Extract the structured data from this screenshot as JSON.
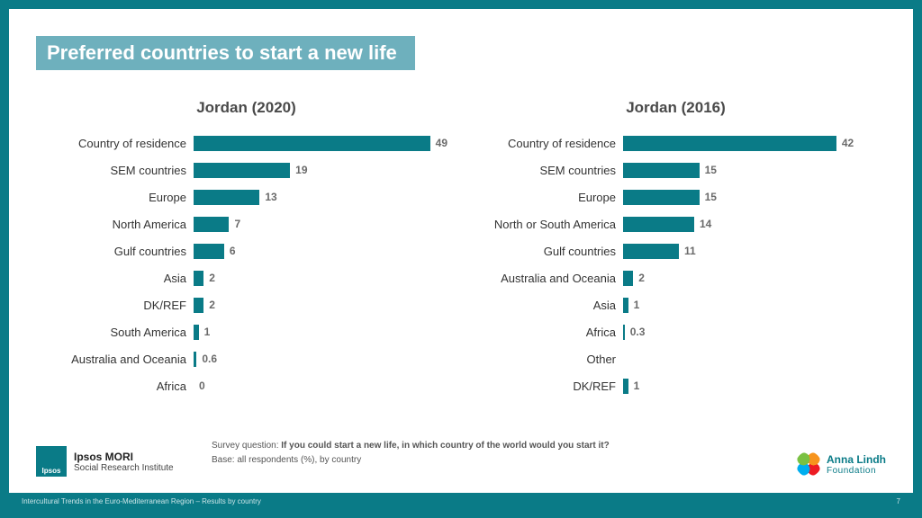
{
  "title": "Preferred countries to start a new life",
  "charts": [
    {
      "title": "Jordan (2020)",
      "max": 50,
      "bar_color": "#0a7b87",
      "label_color": "#333333",
      "value_color": "#6a6a6a",
      "rows": [
        {
          "label": "Country of residence",
          "value": 49,
          "display": "49"
        },
        {
          "label": "SEM countries",
          "value": 19,
          "display": "19"
        },
        {
          "label": "Europe",
          "value": 13,
          "display": "13"
        },
        {
          "label": "North America",
          "value": 7,
          "display": "7"
        },
        {
          "label": "Gulf countries",
          "value": 6,
          "display": "6"
        },
        {
          "label": "Asia",
          "value": 2,
          "display": "2"
        },
        {
          "label": "DK/REF",
          "value": 2,
          "display": "2"
        },
        {
          "label": "South America",
          "value": 1,
          "display": "1"
        },
        {
          "label": "Australia and Oceania",
          "value": 0.6,
          "display": "0.6"
        },
        {
          "label": "Africa",
          "value": 0,
          "display": "0"
        }
      ]
    },
    {
      "title": "Jordan (2016)",
      "max": 50,
      "bar_color": "#0a7b87",
      "label_color": "#333333",
      "value_color": "#6a6a6a",
      "rows": [
        {
          "label": "Country of residence",
          "value": 42,
          "display": "42"
        },
        {
          "label": "SEM countries",
          "value": 15,
          "display": "15"
        },
        {
          "label": "Europe",
          "value": 15,
          "display": "15"
        },
        {
          "label": "North or South America",
          "value": 14,
          "display": "14"
        },
        {
          "label": "Gulf countries",
          "value": 11,
          "display": "11"
        },
        {
          "label": "Australia and Oceania",
          "value": 2,
          "display": "2"
        },
        {
          "label": "Asia",
          "value": 1,
          "display": "1"
        },
        {
          "label": "Africa",
          "value": 0.3,
          "display": "0.3"
        },
        {
          "label": "Other",
          "value": 0,
          "display": ""
        },
        {
          "label": "DK/REF",
          "value": 1,
          "display": "1"
        }
      ]
    }
  ],
  "survey_q_prefix": "Survey question: ",
  "survey_q": "If you could start a new life, in which country of the world would you start it?",
  "base": "Base: all respondents (%), by country",
  "ipsos": {
    "box": "Ipsos",
    "line1": "Ipsos MORI",
    "line2": "Social Research Institute"
  },
  "alf": {
    "line1": "Anna Lindh",
    "line2": "Foundation"
  },
  "strip_left": "Intercultural Trends in the Euro-Mediterranean Region –  Results by country",
  "strip_right": "7",
  "colors": {
    "frame": "#0a7b87",
    "title_bg": "#6eb0bd",
    "title_fg": "#ffffff"
  }
}
